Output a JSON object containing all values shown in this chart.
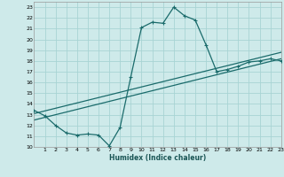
{
  "xlabel": "Humidex (Indice chaleur)",
  "ylabel": "",
  "xlim": [
    0,
    23
  ],
  "ylim": [
    10,
    23.5
  ],
  "yticks": [
    10,
    11,
    12,
    13,
    14,
    15,
    16,
    17,
    18,
    19,
    20,
    21,
    22,
    23
  ],
  "xticks": [
    1,
    2,
    3,
    4,
    5,
    6,
    7,
    8,
    9,
    10,
    11,
    12,
    13,
    14,
    15,
    16,
    17,
    18,
    19,
    20,
    21,
    22,
    23
  ],
  "bg_color": "#ceeaea",
  "grid_color": "#a8d4d4",
  "line_color": "#1a6b6b",
  "curve1_x": [
    0,
    1,
    2,
    3,
    4,
    5,
    6,
    7,
    8,
    9,
    10,
    11,
    12,
    13,
    14,
    15,
    16,
    17,
    18,
    19,
    20,
    21,
    22,
    23
  ],
  "curve1_y": [
    13.4,
    12.9,
    12.0,
    11.3,
    11.1,
    11.2,
    11.1,
    10.1,
    11.8,
    16.5,
    21.1,
    21.6,
    21.5,
    23.0,
    22.2,
    21.8,
    19.5,
    17.0,
    17.2,
    17.5,
    17.9,
    18.0,
    18.2,
    18.0
  ],
  "curve2_x": [
    0,
    23
  ],
  "curve2_y": [
    12.5,
    18.2
  ],
  "curve3_x": [
    0,
    23
  ],
  "curve3_y": [
    13.1,
    18.8
  ]
}
